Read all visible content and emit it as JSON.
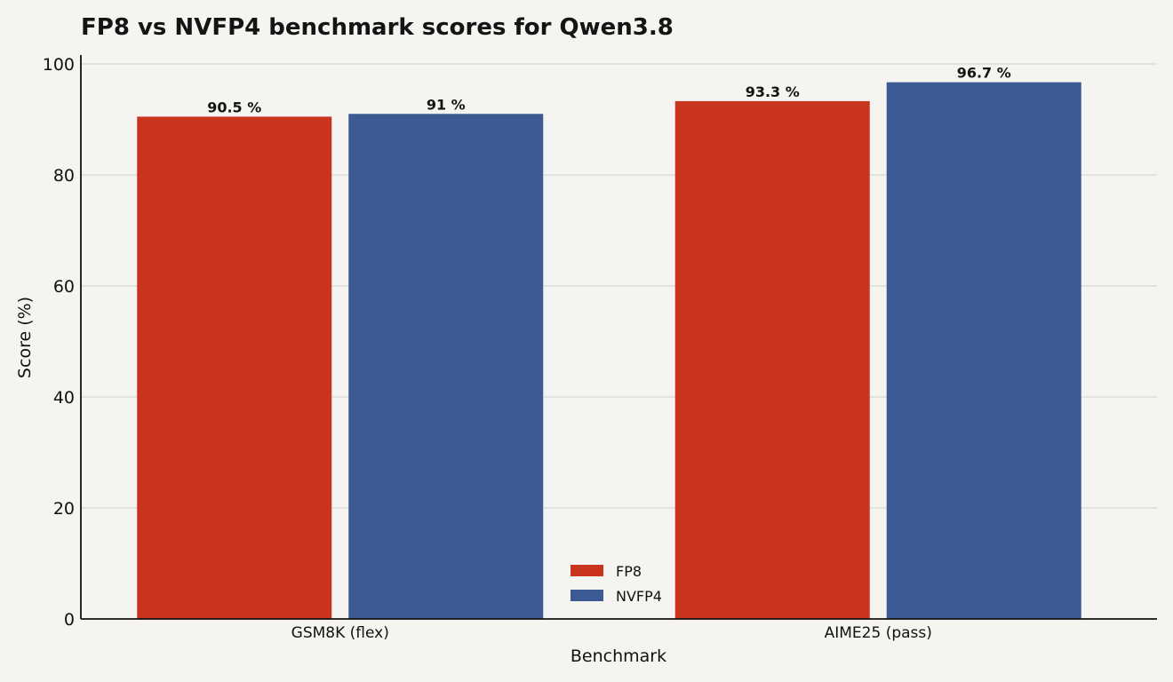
{
  "chart_data": {
    "type": "bar",
    "title": "FP8 vs NVFP4 benchmark scores for Qwen3.8",
    "xlabel": "Benchmark",
    "ylabel": "Score (%)",
    "categories": [
      "GSM8K (flex)",
      "AIME25 (pass)"
    ],
    "series": [
      {
        "name": "FP8",
        "color": "#c9341f",
        "values": [
          90.5,
          93.3
        ],
        "labels": [
          "90.5 %",
          "93.3 %"
        ]
      },
      {
        "name": "NVFP4",
        "color": "#3c5a94",
        "values": [
          91,
          96.7
        ],
        "labels": [
          "91 %",
          "96.7 %"
        ]
      }
    ],
    "ylim": [
      0,
      100
    ],
    "yticks": [
      0,
      20,
      40,
      60,
      80,
      100
    ],
    "grid": true,
    "legend_position": "bottom-center"
  }
}
